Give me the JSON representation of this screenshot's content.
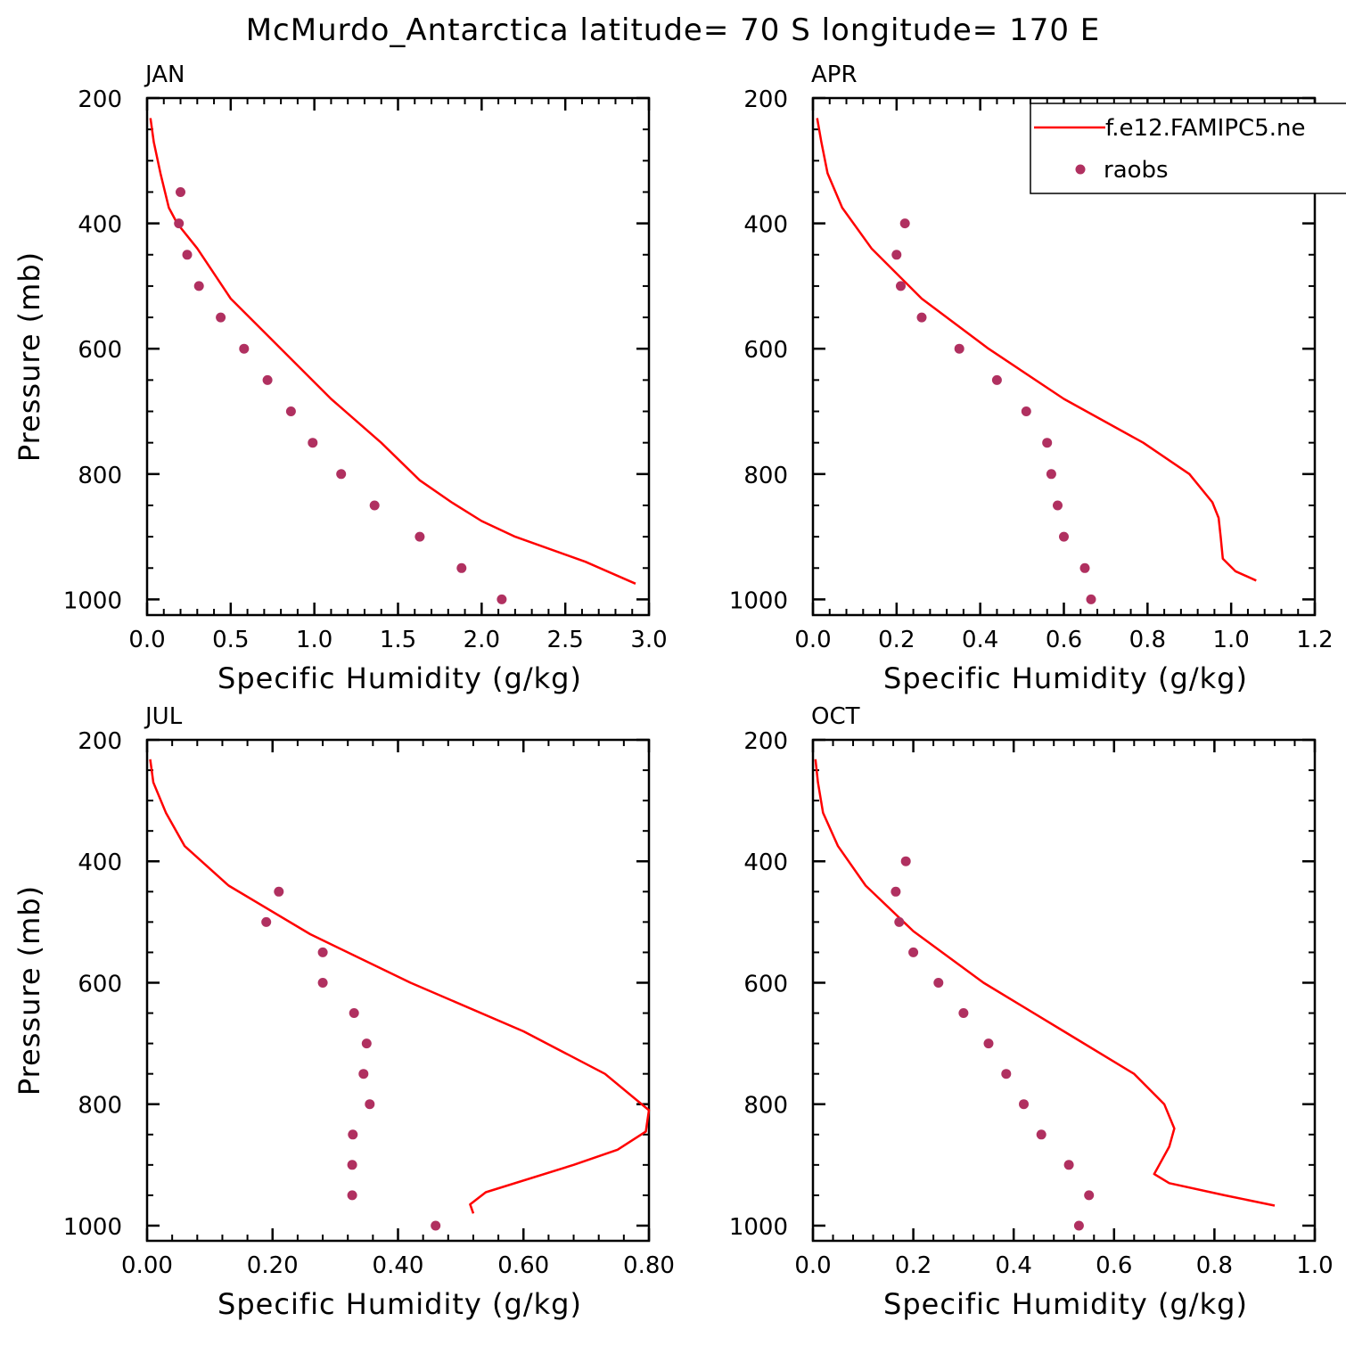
{
  "title": "McMurdo_Antarctica  latitude= 70 S longitude= 170 E",
  "colors": {
    "model": "#ff0000",
    "obs": "#b03060",
    "axis": "#000000"
  },
  "legend": {
    "placement": "top-right of APR panel",
    "model_label": "f.e12.FAMIPC5.ne",
    "obs_label": "raobs"
  },
  "chart_data": [
    {
      "type": "line",
      "title": "JAN",
      "xlabel": "Specific Humidity (g/kg)",
      "ylabel": "Pressure (mb)",
      "xlim": [
        0,
        3.0
      ],
      "ylim": [
        200,
        1025
      ],
      "y_inverted": true,
      "xticks": [
        "0.0",
        "0.5",
        "1.0",
        "1.5",
        "2.0",
        "2.5",
        "3.0"
      ],
      "xtick_values": [
        0,
        0.5,
        1.0,
        1.5,
        2.0,
        2.5,
        3.0
      ],
      "yticks": [
        "200",
        "400",
        "600",
        "800",
        "1000"
      ],
      "ytick_values": [
        200,
        400,
        600,
        800,
        1000
      ],
      "series": [
        {
          "name": "f.e12.FAMIPC5.ne",
          "kind": "line",
          "x": [
            0.02,
            0.04,
            0.08,
            0.13,
            0.18,
            0.3,
            0.5,
            0.8,
            1.1,
            1.4,
            1.63,
            1.82,
            2.0,
            2.2,
            2.62,
            2.92
          ],
          "y": [
            232,
            270,
            320,
            375,
            400,
            440,
            520,
            600,
            680,
            750,
            810,
            845,
            875,
            900,
            940,
            975
          ]
        },
        {
          "name": "raobs",
          "kind": "scatter",
          "x": [
            0.2,
            0.19,
            0.24,
            0.31,
            0.44,
            0.58,
            0.72,
            0.86,
            0.99,
            1.16,
            1.36,
            1.63,
            1.88,
            2.12
          ],
          "y": [
            350,
            400,
            450,
            500,
            550,
            600,
            650,
            700,
            750,
            800,
            850,
            900,
            950,
            1000
          ]
        }
      ]
    },
    {
      "type": "line",
      "title": "APR",
      "xlabel": "Specific Humidity (g/kg)",
      "ylabel": "",
      "xlim": [
        0,
        1.2
      ],
      "ylim": [
        200,
        1025
      ],
      "y_inverted": true,
      "xticks": [
        "0.0",
        "0.2",
        "0.4",
        "0.6",
        "0.8",
        "1.0",
        "1.2"
      ],
      "xtick_values": [
        0,
        0.2,
        0.4,
        0.6,
        0.8,
        1.0,
        1.2
      ],
      "yticks": [
        "200",
        "400",
        "600",
        "800",
        "1000"
      ],
      "ytick_values": [
        200,
        400,
        600,
        800,
        1000
      ],
      "series": [
        {
          "name": "f.e12.FAMIPC5.ne",
          "kind": "line",
          "x": [
            0.01,
            0.02,
            0.035,
            0.07,
            0.14,
            0.26,
            0.42,
            0.6,
            0.79,
            0.9,
            0.955,
            0.97,
            0.975,
            0.98,
            1.01,
            1.06
          ],
          "y": [
            232,
            270,
            320,
            375,
            440,
            520,
            600,
            680,
            750,
            800,
            845,
            870,
            900,
            935,
            955,
            970
          ]
        },
        {
          "name": "raobs",
          "kind": "scatter",
          "x": [
            0.22,
            0.2,
            0.21,
            0.26,
            0.35,
            0.44,
            0.51,
            0.56,
            0.57,
            0.585,
            0.6,
            0.65,
            0.665
          ],
          "y": [
            400,
            450,
            500,
            550,
            600,
            650,
            700,
            750,
            800,
            850,
            900,
            950,
            1000
          ]
        }
      ]
    },
    {
      "type": "line",
      "title": "JUL",
      "xlabel": "Specific Humidity (g/kg)",
      "ylabel": "Pressure (mb)",
      "xlim": [
        0,
        0.8
      ],
      "ylim": [
        200,
        1025
      ],
      "y_inverted": true,
      "xticks": [
        "0.00",
        "0.20",
        "0.40",
        "0.60",
        "0.80"
      ],
      "xtick_values": [
        0,
        0.2,
        0.4,
        0.6,
        0.8
      ],
      "yticks": [
        "200",
        "400",
        "600",
        "800",
        "1000"
      ],
      "ytick_values": [
        200,
        400,
        600,
        800,
        1000
      ],
      "series": [
        {
          "name": "f.e12.FAMIPC5.ne",
          "kind": "line",
          "x": [
            0.005,
            0.01,
            0.03,
            0.06,
            0.13,
            0.26,
            0.42,
            0.6,
            0.73,
            0.8,
            0.795,
            0.75,
            0.68,
            0.54,
            0.515,
            0.52
          ],
          "y": [
            232,
            270,
            320,
            375,
            440,
            520,
            600,
            680,
            750,
            810,
            845,
            875,
            900,
            945,
            965,
            980
          ]
        },
        {
          "name": "raobs",
          "kind": "scatter",
          "x": [
            0.21,
            0.19,
            0.28,
            0.28,
            0.33,
            0.35,
            0.345,
            0.355,
            0.328,
            0.327,
            0.327,
            0.46
          ],
          "y": [
            450,
            500,
            550,
            600,
            650,
            700,
            750,
            800,
            850,
            900,
            950,
            1000
          ]
        }
      ]
    },
    {
      "type": "line",
      "title": "OCT",
      "xlabel": "Specific Humidity (g/kg)",
      "ylabel": "",
      "xlim": [
        0,
        1.0
      ],
      "ylim": [
        200,
        1025
      ],
      "y_inverted": true,
      "xticks": [
        "0.0",
        "0.2",
        "0.4",
        "0.6",
        "0.8",
        "1.0"
      ],
      "xtick_values": [
        0,
        0.2,
        0.4,
        0.6,
        0.8,
        1.0
      ],
      "yticks": [
        "200",
        "400",
        "600",
        "800",
        "1000"
      ],
      "ytick_values": [
        200,
        400,
        600,
        800,
        1000
      ],
      "series": [
        {
          "name": "f.e12.FAMIPC5.ne",
          "kind": "line",
          "x": [
            0.005,
            0.01,
            0.02,
            0.05,
            0.105,
            0.2,
            0.34,
            0.5,
            0.64,
            0.7,
            0.72,
            0.71,
            0.69,
            0.68,
            0.71,
            0.82,
            0.92
          ],
          "y": [
            232,
            270,
            320,
            375,
            440,
            515,
            600,
            680,
            750,
            800,
            840,
            870,
            900,
            915,
            930,
            950,
            967
          ]
        },
        {
          "name": "raobs",
          "kind": "scatter",
          "x": [
            0.185,
            0.165,
            0.172,
            0.2,
            0.25,
            0.3,
            0.35,
            0.385,
            0.42,
            0.455,
            0.51,
            0.55,
            0.53
          ],
          "y": [
            400,
            450,
            500,
            550,
            600,
            650,
            700,
            750,
            800,
            850,
            900,
            950,
            1000
          ]
        }
      ]
    }
  ]
}
